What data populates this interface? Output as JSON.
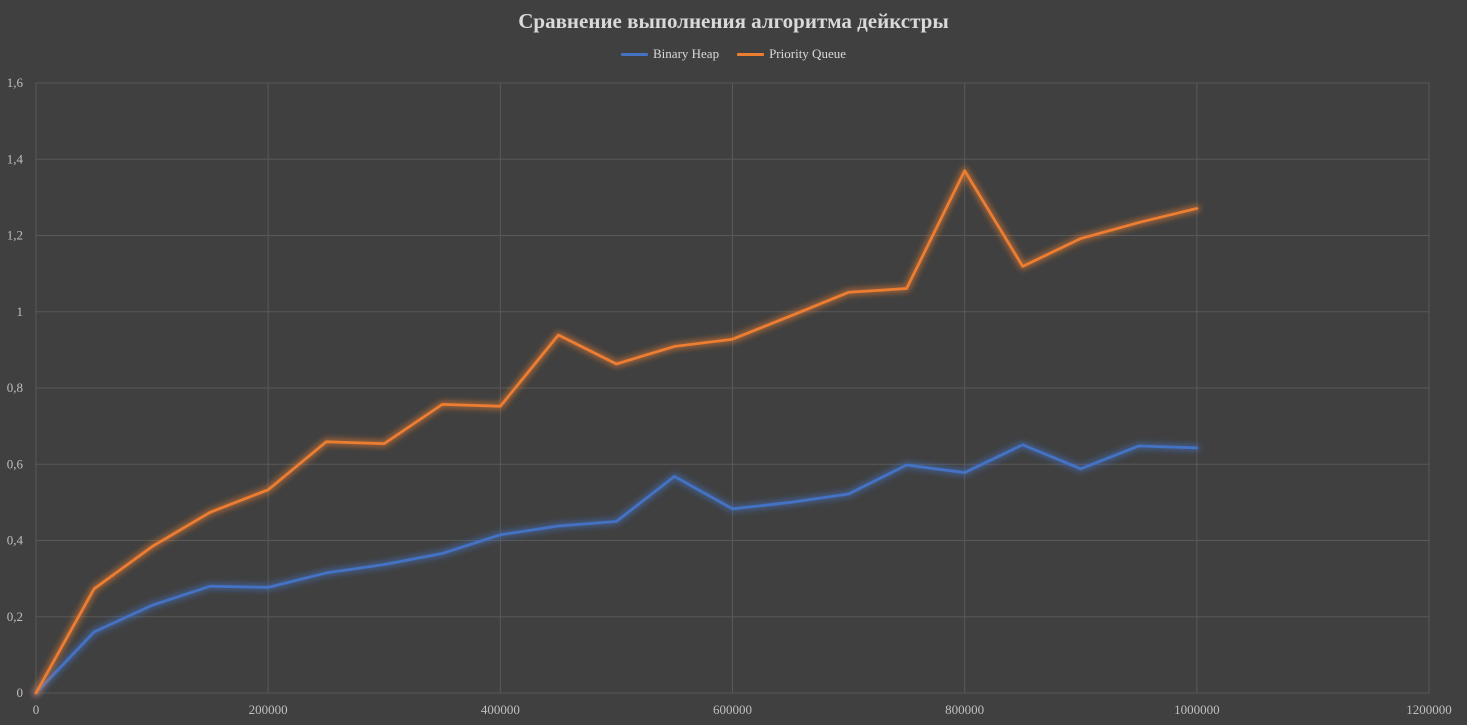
{
  "chart_data": {
    "type": "line",
    "title": "Сравнение выполнения алгоритма дейкстры",
    "xlabel": "",
    "ylabel": "",
    "xlim": [
      0,
      1200000
    ],
    "ylim": [
      0,
      1.6
    ],
    "x_ticks": [
      {
        "value": 0,
        "label": "0"
      },
      {
        "value": 200000,
        "label": "200000"
      },
      {
        "value": 400000,
        "label": "400000"
      },
      {
        "value": 600000,
        "label": "600000"
      },
      {
        "value": 800000,
        "label": "800000"
      },
      {
        "value": 1000000,
        "label": "1000000"
      },
      {
        "value": 1200000,
        "label": "1200000"
      }
    ],
    "y_ticks": [
      {
        "value": 0,
        "label": "0"
      },
      {
        "value": 0.2,
        "label": "0,2"
      },
      {
        "value": 0.4,
        "label": "0,4"
      },
      {
        "value": 0.6,
        "label": "0,6"
      },
      {
        "value": 0.8,
        "label": "0,8"
      },
      {
        "value": 1.0,
        "label": "1"
      },
      {
        "value": 1.2,
        "label": "1,2"
      },
      {
        "value": 1.4,
        "label": "1,4"
      },
      {
        "value": 1.6,
        "label": "1,6"
      }
    ],
    "grid": true,
    "legend_position": "top",
    "x": [
      0,
      50000,
      100000,
      150000,
      200000,
      250000,
      300000,
      350000,
      400000,
      450000,
      500000,
      550000,
      600000,
      650000,
      700000,
      750000,
      800000,
      850000,
      900000,
      950000,
      1000000
    ],
    "series": [
      {
        "name": "Binary Heap",
        "color": "#4472c4",
        "values": [
          0,
          0.16,
          0.23,
          0.28,
          0.277,
          0.315,
          0.337,
          0.366,
          0.415,
          0.438,
          0.45,
          0.568,
          0.483,
          0.5,
          0.522,
          0.598,
          0.578,
          0.651,
          0.588,
          0.648,
          0.643
        ]
      },
      {
        "name": "Priority Queue",
        "color": "#ed7d31",
        "values": [
          0,
          0.273,
          0.384,
          0.474,
          0.533,
          0.659,
          0.654,
          0.757,
          0.752,
          0.939,
          0.863,
          0.909,
          0.928,
          0.989,
          1.051,
          1.061,
          1.37,
          1.119,
          1.192,
          1.234,
          1.271
        ]
      }
    ]
  }
}
